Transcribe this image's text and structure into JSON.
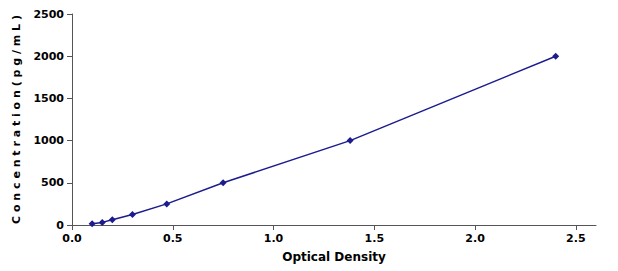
{
  "chart_data": {
    "type": "line",
    "x": [
      0.1,
      0.15,
      0.2,
      0.3,
      0.47,
      0.75,
      1.38,
      2.4
    ],
    "values": [
      15,
      31,
      63,
      125,
      250,
      500,
      1000,
      2000
    ],
    "color": "#1c1c8f",
    "marker": "diamond",
    "xlabel": "Optical Density",
    "ylabel": "C o n c e n t r a t i o n ( p g / m L )",
    "xlim": [
      0,
      2.6
    ],
    "ylim": [
      0,
      2500
    ],
    "xticks": [
      {
        "value": 0,
        "label": "0.0"
      },
      {
        "value": 0.5,
        "label": "0.5"
      },
      {
        "value": 1,
        "label": "1.0"
      },
      {
        "value": 1.5,
        "label": "1.5"
      },
      {
        "value": 2,
        "label": "2.0"
      },
      {
        "value": 2.5,
        "label": "2.5"
      }
    ],
    "yticks": [
      0,
      500,
      1000,
      1500,
      2000,
      2500
    ],
    "grid": false
  }
}
